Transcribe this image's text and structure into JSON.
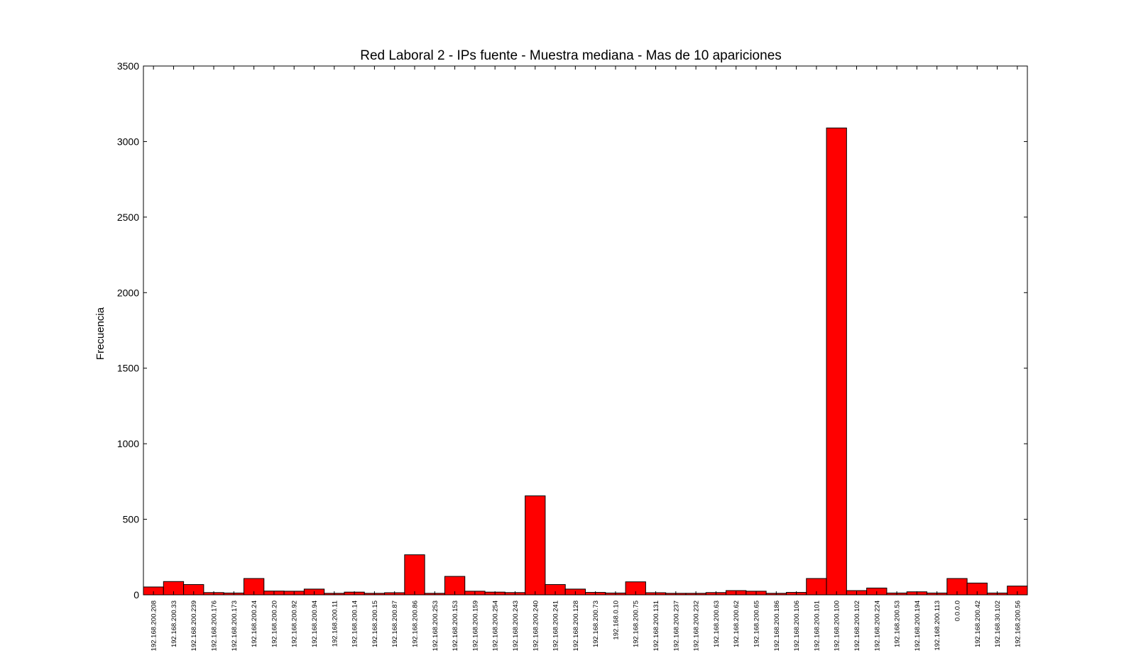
{
  "chart_data": {
    "type": "bar",
    "title": "Red Laboral 2 - IPs fuente - Muestra mediana - Mas de 10 apariciones",
    "xlabel": "",
    "ylabel": "Frecuencia",
    "ylim": [
      0,
      3500
    ],
    "yticks": [
      0,
      500,
      1000,
      1500,
      2000,
      2500,
      3000,
      3500
    ],
    "color": "#ff0000",
    "categories": [
      "192.168.200.208",
      "192.168.200.33",
      "192.168.200.239",
      "192.168.200.176",
      "192.168.200.173",
      "192.168.200.24",
      "192.168.200.20",
      "192.168.200.92",
      "192.168.200.94",
      "192.168.200.11",
      "192.168.200.14",
      "192.168.200.15",
      "192.168.200.87",
      "192.168.200.86",
      "192.168.200.253",
      "192.168.200.153",
      "192.168.200.159",
      "192.168.200.254",
      "192.168.200.243",
      "192.168.200.240",
      "192.168.200.241",
      "192.168.200.128",
      "192.168.200.73",
      "192.168.0.10",
      "192.168.200.75",
      "192.168.200.131",
      "192.168.200.237",
      "192.168.200.232",
      "192.168.200.63",
      "192.168.200.62",
      "192.168.200.65",
      "192.168.200.186",
      "192.168.200.106",
      "192.168.200.101",
      "192.168.200.100",
      "192.168.200.102",
      "192.168.200.224",
      "192.168.200.53",
      "192.168.200.194",
      "192.168.200.113",
      "0.0.0.0",
      "192.168.200.42",
      "192.168.30.102",
      "192.168.200.56"
    ],
    "values": [
      52,
      88,
      68,
      15,
      12,
      108,
      25,
      24,
      38,
      10,
      18,
      10,
      14,
      265,
      10,
      122,
      24,
      18,
      15,
      655,
      68,
      38,
      16,
      12,
      86,
      14,
      10,
      10,
      15,
      28,
      24,
      10,
      16,
      108,
      3090,
      28,
      45,
      12,
      20,
      12,
      108,
      78,
      12,
      58
    ]
  }
}
